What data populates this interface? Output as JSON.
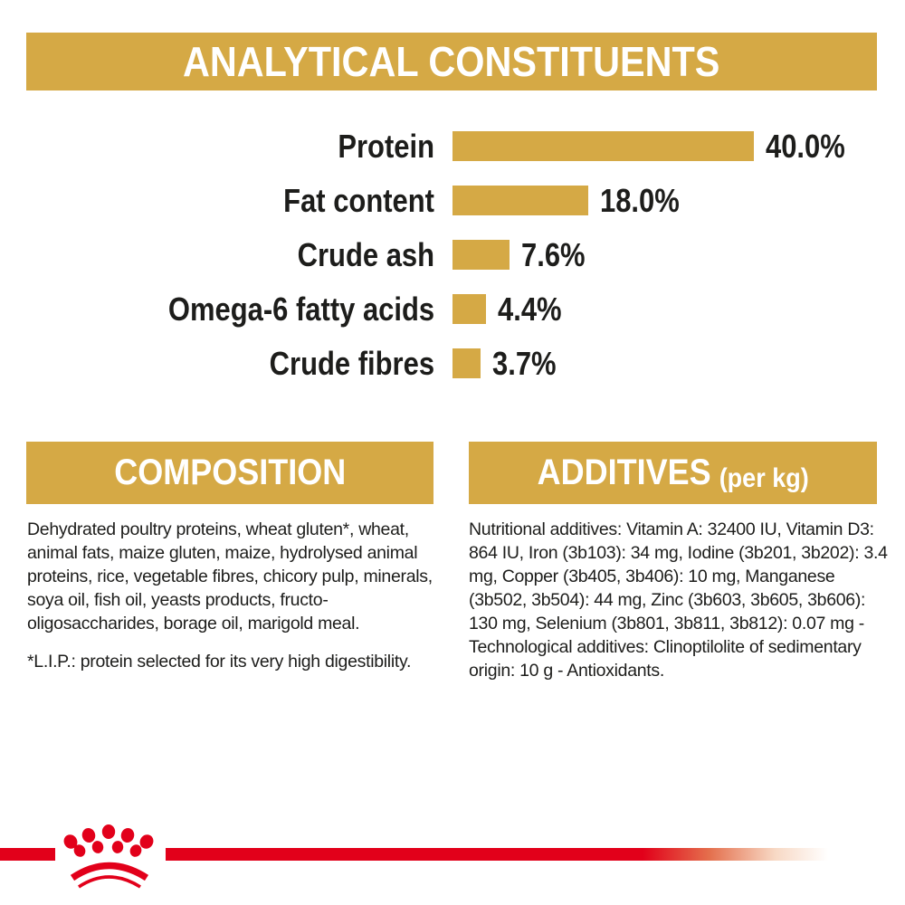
{
  "header": {
    "title": "ANALYTICAL CONSTITUENTS"
  },
  "chart_data": {
    "type": "bar",
    "orientation": "horizontal",
    "title": "ANALYTICAL CONSTITUENTS",
    "categories": [
      "Protein",
      "Fat content",
      "Crude ash",
      "Omega-6 fatty acids",
      "Crude fibres"
    ],
    "values": [
      40.0,
      18.0,
      7.6,
      4.4,
      3.7
    ],
    "value_labels": [
      "40.0%",
      "18.0%",
      "7.6%",
      "4.4%",
      "3.7%"
    ],
    "unit": "%",
    "xlim": [
      0,
      40
    ],
    "grid": false,
    "legend": "none",
    "bar_color": "#d5a945",
    "label_color": "#1d1d1b"
  },
  "composition": {
    "heading": "COMPOSITION",
    "body": "Dehydrated poultry proteins, wheat gluten*, wheat, animal fats, maize gluten, maize, hydrolysed animal proteins, rice, vegetable fibres, chicory pulp, minerals, soya oil, fish oil, yeasts products, fructo-oligosaccharides, borage oil, marigold meal.",
    "footnote": "*L.I.P.: protein selected for its very high digestibility."
  },
  "additives": {
    "heading": "ADDITIVES",
    "heading_suffix": "(per kg)",
    "body": "Nutritional additives: Vitamin A: 32400 IU, Vitamin D3: 864 IU, Iron (3b103): 34 mg, Iodine (3b201, 3b202): 3.4 mg, Copper (3b405, 3b406): 10 mg, Manganese (3b502, 3b504): 44 mg, Zinc (3b603, 3b605, 3b606): 130 mg, Selenium (3b801, 3b811, 3b812): 0.07 mg - Technological additives: Clinoptilolite of sedimentary origin: 10 g - Antioxidants."
  },
  "footer": {
    "brand_mark": "royal-canin-crown"
  },
  "colors": {
    "gold": "#d5a945",
    "red": "#e2001a",
    "text": "#1d1d1b",
    "banner_text": "#ffffff"
  }
}
